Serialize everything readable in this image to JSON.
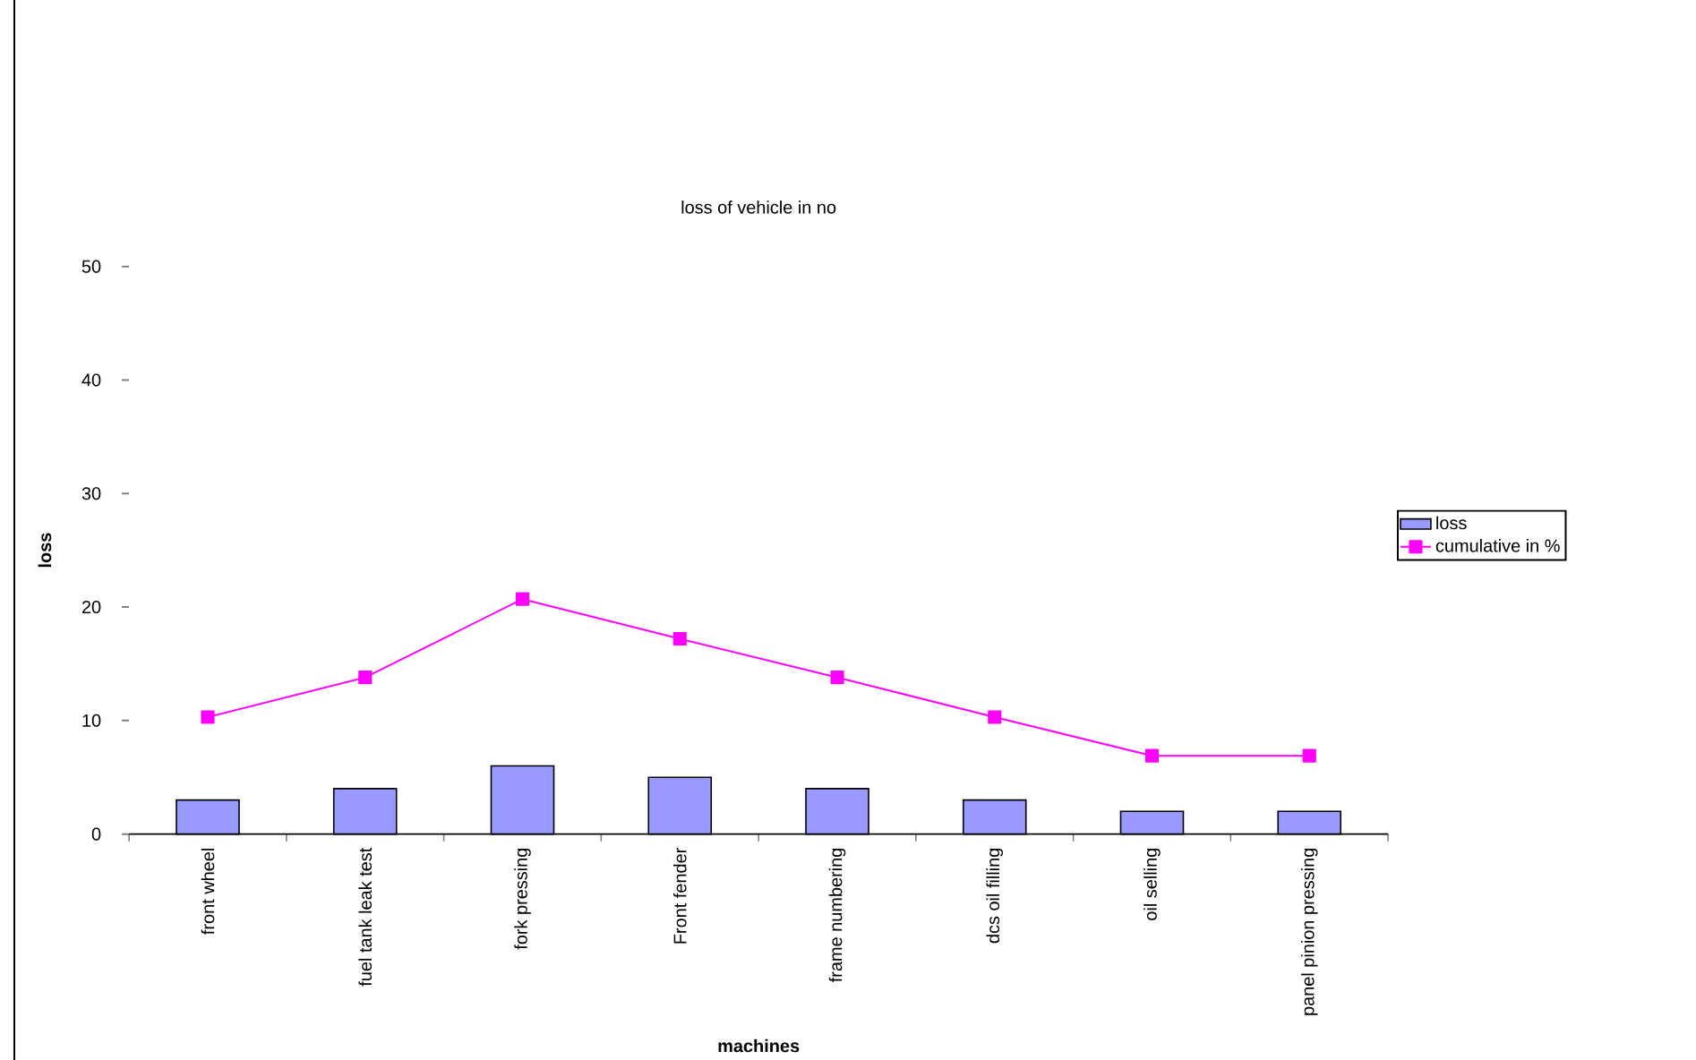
{
  "chart_data": {
    "type": "bar",
    "title": "loss of vehicle in no",
    "xlabel": "machines",
    "ylabel": "loss",
    "categories": [
      "front wheel",
      "fuel tank leak test",
      "fork pressing",
      "Front fender",
      "frame numbering",
      "dcs oil filling",
      "oil selling",
      "panel pinion pressing"
    ],
    "series": [
      {
        "name": "loss",
        "color": "#9999ff",
        "values": [
          3,
          4,
          6,
          5,
          4,
          3,
          2,
          2
        ]
      },
      {
        "name": "cumulative in %",
        "type": "line",
        "color": "#ff00ff",
        "values": [
          10.3,
          13.8,
          20.7,
          17.2,
          13.8,
          10.3,
          6.9,
          6.9
        ]
      }
    ],
    "marker": "square",
    "ylim": [
      0,
      50
    ],
    "yticks": [
      0,
      10,
      20,
      30,
      40,
      50
    ],
    "grid": false,
    "legend": "right"
  }
}
